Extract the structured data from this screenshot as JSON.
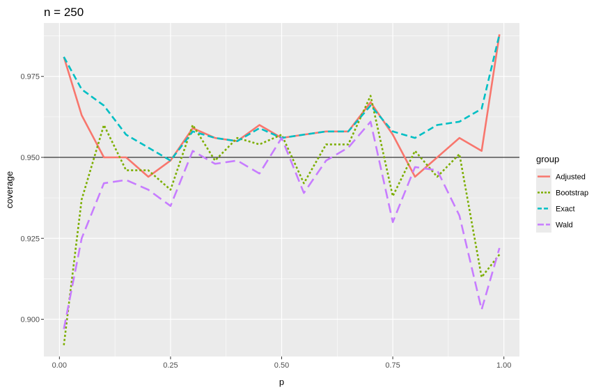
{
  "chart_data": {
    "type": "line",
    "title": "n = 250",
    "xlabel": "p",
    "ylabel": "coverage",
    "xlim": [
      -0.035,
      1.035
    ],
    "ylim": [
      0.8885,
      0.9915
    ],
    "x_ticks": [
      0.0,
      0.25,
      0.5,
      0.75,
      1.0
    ],
    "x_tick_labels": [
      "0.00",
      "0.25",
      "0.50",
      "0.75",
      "1.00"
    ],
    "y_ticks": [
      0.9,
      0.925,
      0.95,
      0.975
    ],
    "y_tick_labels": [
      "0.900",
      "0.925",
      "0.950",
      "0.975"
    ],
    "grid": true,
    "reference_line": {
      "y": 0.95,
      "color": "#000000"
    },
    "legend": {
      "title": "group",
      "position": "right"
    },
    "x": [
      0.01,
      0.05,
      0.1,
      0.15,
      0.2,
      0.25,
      0.3,
      0.35,
      0.4,
      0.45,
      0.5,
      0.55,
      0.6,
      0.65,
      0.7,
      0.75,
      0.8,
      0.85,
      0.9,
      0.95,
      0.99
    ],
    "series": [
      {
        "name": "Adjusted",
        "color": "#F8766D",
        "dash": "solid",
        "values": [
          0.981,
          0.963,
          0.95,
          0.95,
          0.944,
          0.949,
          0.959,
          0.956,
          0.955,
          0.96,
          0.956,
          0.957,
          0.958,
          0.958,
          0.967,
          0.957,
          0.944,
          0.95,
          0.956,
          0.952,
          0.988
        ]
      },
      {
        "name": "Bootstrap",
        "color": "#7CAE00",
        "dash": "dotted",
        "values": [
          0.892,
          0.937,
          0.96,
          0.946,
          0.946,
          0.94,
          0.96,
          0.949,
          0.956,
          0.954,
          0.957,
          0.942,
          0.954,
          0.954,
          0.969,
          0.938,
          0.952,
          0.944,
          0.951,
          0.913,
          0.92
        ]
      },
      {
        "name": "Exact",
        "color": "#00BFC4",
        "dash": "dashed",
        "values": [
          0.981,
          0.971,
          0.966,
          0.957,
          0.953,
          0.949,
          0.958,
          0.956,
          0.955,
          0.959,
          0.956,
          0.957,
          0.958,
          0.958,
          0.966,
          0.958,
          0.956,
          0.96,
          0.961,
          0.965,
          0.988
        ]
      },
      {
        "name": "Wald",
        "color": "#C77CFF",
        "dash": "longdash",
        "values": [
          0.897,
          0.925,
          0.942,
          0.943,
          0.94,
          0.935,
          0.952,
          0.948,
          0.949,
          0.945,
          0.956,
          0.939,
          0.949,
          0.953,
          0.961,
          0.93,
          0.947,
          0.946,
          0.932,
          0.903,
          0.922
        ]
      }
    ]
  }
}
